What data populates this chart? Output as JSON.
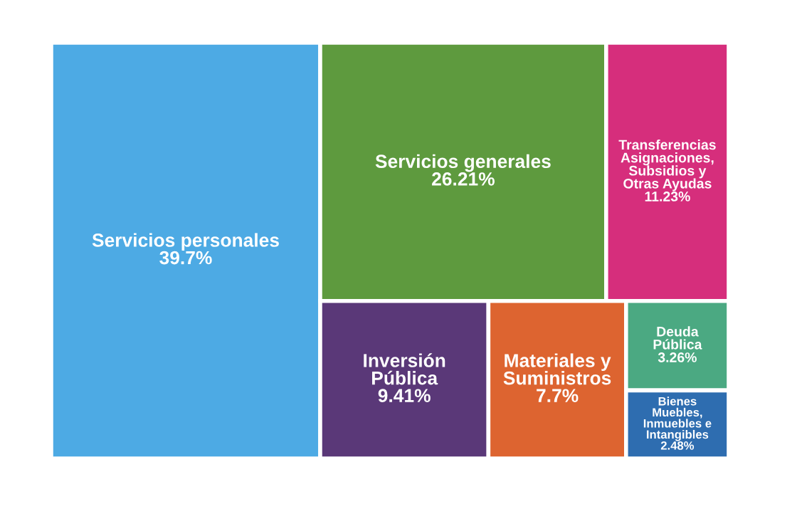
{
  "chart_data": {
    "type": "other",
    "categories": [
      "Servicios personales",
      "Servicios generales",
      "Transferencias Asignaciones, Subsidios y Otras Ayudas",
      "Inversión Pública",
      "Materiales y Suministros",
      "Deuda Pública",
      "Bienes Muebles, Inmuebles e Intangibles"
    ],
    "values": [
      39.7,
      26.21,
      11.23,
      9.41,
      7.7,
      3.26,
      2.48
    ],
    "value_labels": [
      "39.7%",
      "26.21%",
      "11.23%",
      "9.41%",
      "7.7%",
      "3.26%",
      "2.48%"
    ],
    "colors": [
      "#4daae4",
      "#5e9a3e",
      "#d62e7c",
      "#5a3878",
      "#dd6430",
      "#4ba982",
      "#2e6db0"
    ]
  }
}
